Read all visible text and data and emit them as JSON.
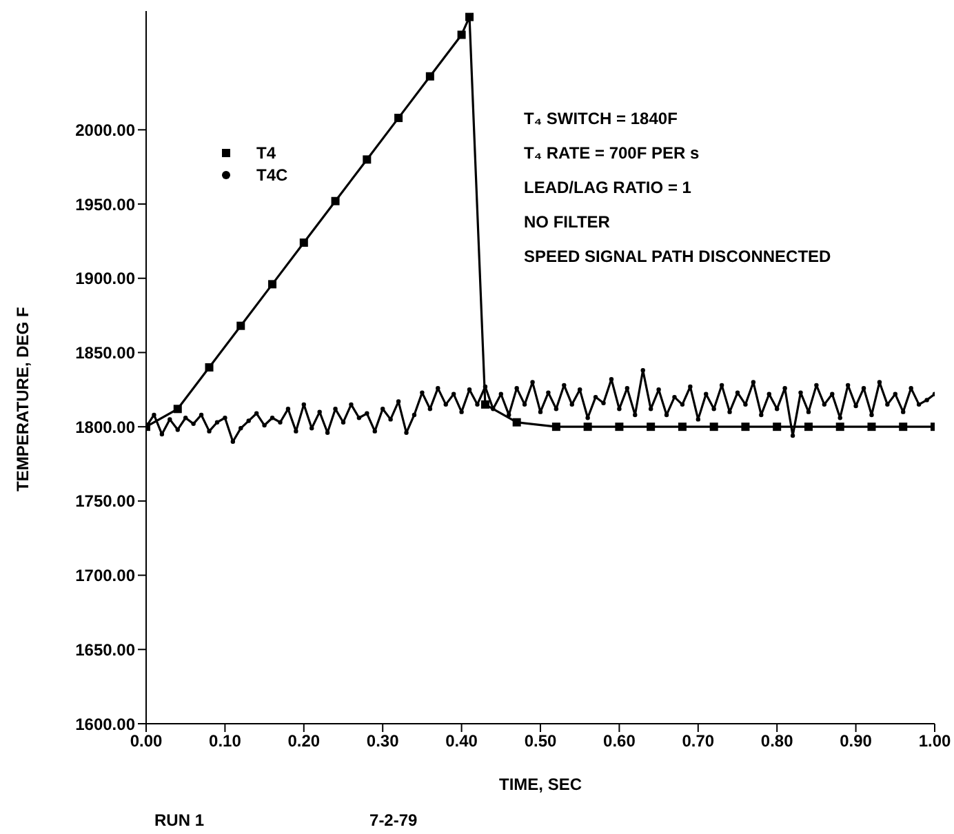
{
  "chart_data": {
    "type": "line",
    "xlabel": "TIME, SEC",
    "ylabel": "TEMPERATURE, DEG F",
    "xlim": [
      0,
      1
    ],
    "xticks": [
      {
        "value": 0,
        "label": "0.00"
      },
      {
        "value": 0.1,
        "label": "0.10"
      },
      {
        "value": 0.2,
        "label": "0.20"
      },
      {
        "value": 0.3,
        "label": "0.30"
      },
      {
        "value": 0.4,
        "label": "0.40"
      },
      {
        "value": 0.5,
        "label": "0.50"
      },
      {
        "value": 0.6,
        "label": "0.60"
      },
      {
        "value": 0.7,
        "label": "0.70"
      },
      {
        "value": 0.8,
        "label": "0.80"
      },
      {
        "value": 0.9,
        "label": "0.90"
      },
      {
        "value": 1,
        "label": "1.00"
      }
    ],
    "ylim": [
      1600,
      2080
    ],
    "yticks": [
      {
        "value": 1600,
        "label": "1600.00"
      },
      {
        "value": 1650,
        "label": "1650.00"
      },
      {
        "value": 1700,
        "label": "1700.00"
      },
      {
        "value": 1750,
        "label": "1750.00"
      },
      {
        "value": 1800,
        "label": "1800.00"
      },
      {
        "value": 1850,
        "label": "1850.00"
      },
      {
        "value": 1900,
        "label": "1900.00"
      },
      {
        "value": 1950,
        "label": "1950.00"
      },
      {
        "value": 2000,
        "label": "2000.00"
      }
    ],
    "grid": false,
    "legend": "top left",
    "series": [
      {
        "name": "T4",
        "color": "#000000",
        "marker": "square",
        "x": [
          0,
          0.04,
          0.08,
          0.12,
          0.16,
          0.2,
          0.24,
          0.28,
          0.32,
          0.36,
          0.4,
          0.41,
          0.43,
          0.47,
          0.52,
          0.56,
          0.6,
          0.64,
          0.68,
          0.72,
          0.76,
          0.8,
          0.84,
          0.88,
          0.92,
          0.96,
          1
        ],
        "values": [
          1800,
          1812,
          1840,
          1868,
          1896,
          1924,
          1952,
          1980,
          2008,
          2036,
          2064,
          2076,
          1815,
          1803,
          1800,
          1800,
          1800,
          1800,
          1800,
          1800,
          1800,
          1800,
          1800,
          1800,
          1800,
          1800,
          1800
        ]
      },
      {
        "name": "T4C",
        "color": "#000000",
        "marker": "circle",
        "x": [
          0,
          0.01,
          0.02,
          0.03,
          0.04,
          0.05,
          0.06,
          0.07,
          0.08,
          0.09,
          0.1,
          0.11,
          0.12,
          0.13,
          0.14,
          0.15,
          0.16,
          0.17,
          0.18,
          0.19,
          0.2,
          0.21,
          0.22,
          0.23,
          0.24,
          0.25,
          0.26,
          0.27,
          0.28,
          0.29,
          0.3,
          0.31,
          0.32,
          0.33,
          0.34,
          0.35,
          0.36,
          0.37,
          0.38,
          0.39,
          0.4,
          0.41,
          0.42,
          0.43,
          0.44,
          0.45,
          0.46,
          0.47,
          0.48,
          0.49,
          0.5,
          0.51,
          0.52,
          0.53,
          0.54,
          0.55,
          0.56,
          0.57,
          0.58,
          0.59,
          0.6,
          0.61,
          0.62,
          0.63,
          0.64,
          0.65,
          0.66,
          0.67,
          0.68,
          0.69,
          0.7,
          0.71,
          0.72,
          0.73,
          0.74,
          0.75,
          0.76,
          0.77,
          0.78,
          0.79,
          0.8,
          0.81,
          0.82,
          0.83,
          0.84,
          0.85,
          0.86,
          0.87,
          0.88,
          0.89,
          0.9,
          0.91,
          0.92,
          0.93,
          0.94,
          0.95,
          0.96,
          0.97,
          0.98,
          0.99,
          1
        ],
        "values": [
          1800,
          1808,
          1795,
          1805,
          1798,
          1806,
          1802,
          1808,
          1797,
          1803,
          1806,
          1790,
          1799,
          1804,
          1809,
          1801,
          1806,
          1803,
          1812,
          1797,
          1815,
          1799,
          1810,
          1796,
          1812,
          1803,
          1815,
          1806,
          1809,
          1797,
          1812,
          1805,
          1817,
          1796,
          1808,
          1823,
          1812,
          1826,
          1815,
          1822,
          1810,
          1825,
          1815,
          1827,
          1812,
          1822,
          1808,
          1826,
          1815,
          1830,
          1810,
          1823,
          1812,
          1828,
          1815,
          1825,
          1806,
          1820,
          1816,
          1832,
          1812,
          1826,
          1808,
          1838,
          1812,
          1825,
          1808,
          1820,
          1815,
          1827,
          1805,
          1822,
          1812,
          1828,
          1810,
          1823,
          1815,
          1830,
          1808,
          1822,
          1812,
          1826,
          1794,
          1823,
          1810,
          1828,
          1815,
          1822,
          1806,
          1828,
          1814,
          1826,
          1808,
          1830,
          1815,
          1822,
          1810,
          1826,
          1815,
          1818,
          1822
        ]
      }
    ],
    "annotations": [
      "T₄ SWITCH = 1840F",
      "T₄ RATE = 700F PER s",
      "LEAD/LAG RATIO = 1",
      "NO FILTER",
      "SPEED SIGNAL PATH DISCONNECTED",
      "RUN 1",
      "7-2-79"
    ]
  }
}
